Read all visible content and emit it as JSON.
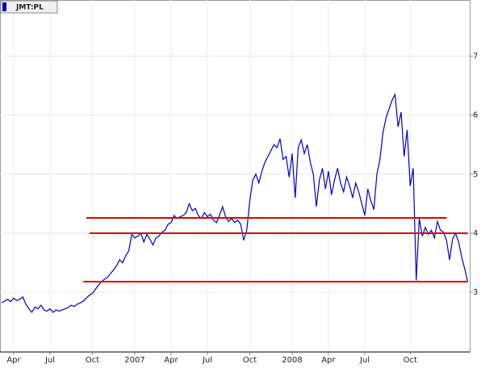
{
  "chart_data": {
    "type": "line",
    "legend": "top-left",
    "categories": [
      null,
      null,
      null,
      null,
      "Apr",
      null,
      null,
      null,
      null,
      null,
      null,
      null,
      null,
      null,
      null,
      null,
      "Jul",
      null,
      null,
      null,
      null,
      null,
      null,
      null,
      null,
      null,
      null,
      null,
      null,
      null,
      "Oct",
      null,
      null,
      null,
      null,
      null,
      null,
      null,
      null,
      null,
      null,
      null,
      null,
      null,
      "2007",
      null,
      null,
      null,
      null,
      null,
      null,
      null,
      null,
      null,
      null,
      null,
      "Apr",
      null,
      null,
      null,
      null,
      null,
      null,
      null,
      null,
      null,
      null,
      null,
      "Jul",
      null,
      null,
      null,
      null,
      null,
      null,
      null,
      null,
      null,
      null,
      null,
      null,
      null,
      "Oct",
      null,
      null,
      null,
      null,
      null,
      null,
      null,
      null,
      null,
      null,
      null,
      null,
      null,
      "2008",
      null,
      null,
      null,
      null,
      null,
      null,
      null,
      null,
      null,
      null,
      null,
      "Apr",
      null,
      null,
      null,
      null,
      null,
      null,
      null,
      null,
      null,
      null,
      null,
      "Jul",
      null,
      null,
      null,
      null,
      null,
      null,
      null,
      null,
      null,
      null,
      null,
      null,
      null,
      null,
      "Oct",
      null,
      null,
      null,
      null,
      null,
      null,
      null,
      null,
      null,
      null,
      null,
      null,
      null,
      null,
      null,
      null,
      null,
      null,
      null
    ],
    "series": [
      {
        "name": "JMT:PL",
        "color": "#0000cc",
        "values": [
          2.82,
          2.85,
          2.88,
          2.84,
          2.9,
          2.86,
          2.88,
          2.92,
          2.8,
          2.72,
          2.66,
          2.75,
          2.72,
          2.78,
          2.7,
          2.68,
          2.72,
          2.66,
          2.7,
          2.68,
          2.7,
          2.72,
          2.74,
          2.78,
          2.76,
          2.8,
          2.82,
          2.85,
          2.9,
          2.95,
          2.98,
          3.05,
          3.12,
          3.18,
          3.22,
          3.25,
          3.32,
          3.38,
          3.45,
          3.55,
          3.5,
          3.62,
          3.7,
          3.98,
          3.92,
          3.95,
          4.0,
          3.85,
          3.98,
          3.9,
          3.8,
          3.92,
          3.95,
          4.02,
          4.05,
          4.15,
          4.18,
          4.3,
          4.25,
          4.28,
          4.3,
          4.35,
          4.5,
          4.38,
          4.42,
          4.3,
          4.25,
          4.35,
          4.28,
          4.32,
          4.22,
          4.18,
          4.3,
          4.45,
          4.28,
          4.2,
          4.25,
          4.18,
          4.22,
          4.15,
          3.88,
          4.05,
          4.55,
          4.9,
          5.0,
          4.85,
          5.05,
          5.2,
          5.3,
          5.4,
          5.5,
          5.45,
          5.6,
          5.25,
          5.3,
          4.95,
          5.35,
          4.6,
          5.45,
          5.58,
          5.35,
          5.5,
          5.2,
          5.0,
          4.45,
          4.9,
          5.1,
          4.75,
          5.05,
          4.65,
          4.9,
          5.1,
          4.85,
          4.7,
          4.95,
          4.8,
          4.6,
          4.85,
          4.7,
          4.5,
          4.3,
          4.75,
          4.55,
          4.4,
          5.0,
          5.25,
          5.7,
          5.95,
          6.1,
          6.25,
          6.35,
          5.8,
          6.05,
          5.3,
          5.75,
          4.8,
          5.1,
          3.2,
          4.25,
          3.95,
          4.1,
          3.98,
          4.05,
          3.92,
          4.2,
          4.05,
          4.02,
          3.88,
          3.55,
          3.9,
          4.0,
          3.85,
          3.6,
          3.4,
          3.18
        ]
      }
    ],
    "hlines": [
      {
        "value": 4.26,
        "from": 28,
        "to": 147,
        "color": "#dd0000"
      },
      {
        "value": 4.0,
        "from": 29,
        "to": 154,
        "color": "#dd0000"
      },
      {
        "value": 3.18,
        "from": 27,
        "to": 154,
        "color": "#dd0000"
      }
    ],
    "ylim": [
      1.99,
      7.95
    ],
    "yticks": [
      3,
      4,
      5,
      6,
      7
    ],
    "grid": true
  }
}
